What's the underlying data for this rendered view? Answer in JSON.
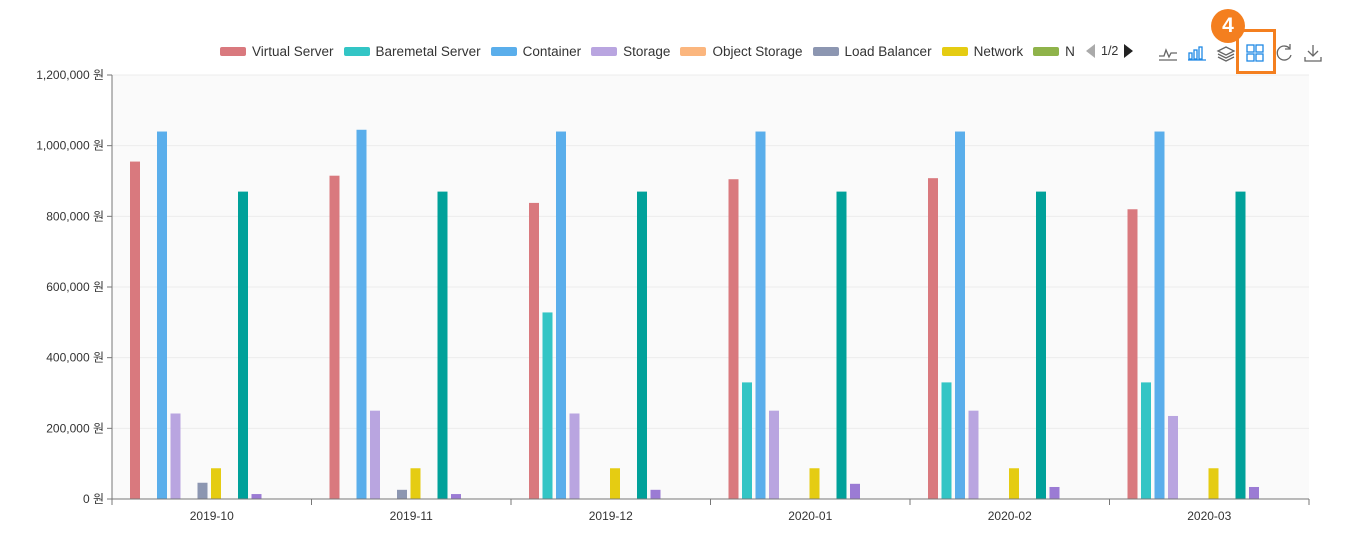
{
  "legend": {
    "items": [
      {
        "label": "Virtual Server",
        "color": "#d9797e"
      },
      {
        "label": "Baremetal Server",
        "color": "#33c5c5"
      },
      {
        "label": "Container",
        "color": "#5aaeeb"
      },
      {
        "label": "Storage",
        "color": "#b9a5e0"
      },
      {
        "label": "Object Storage",
        "color": "#fbb67e"
      },
      {
        "label": "Load Balancer",
        "color": "#8c96b1"
      },
      {
        "label": "Network",
        "color": "#e5cc12"
      },
      {
        "label": "N",
        "color": "#8fb34a"
      }
    ],
    "page_indicator": "1/2"
  },
  "toolbox": {
    "icons": [
      "line-chart-icon",
      "bar-chart-icon",
      "stack-icon",
      "tiled-icon",
      "refresh-icon",
      "download-icon"
    ]
  },
  "annotation": {
    "step_number": "4",
    "color": "#f47f1f"
  },
  "chart_data": {
    "type": "bar",
    "categories": [
      "2019-10",
      "2019-11",
      "2019-12",
      "2020-01",
      "2020-02",
      "2020-03"
    ],
    "ylim": [
      0,
      1200000
    ],
    "yticks": [
      "0 원",
      "200,000 원",
      "400,000 원",
      "600,000 원",
      "800,000 원",
      "1,000,000 원",
      "1,200,000 원"
    ],
    "grid": true,
    "series": [
      {
        "name": "Virtual Server",
        "color": "#d9797e",
        "values": [
          955000,
          915000,
          838000,
          905000,
          908000,
          820000
        ]
      },
      {
        "name": "Baremetal Server",
        "color": "#33c5c5",
        "values": [
          0,
          0,
          528000,
          330000,
          330000,
          330000
        ]
      },
      {
        "name": "Container",
        "color": "#5aaeeb",
        "values": [
          1040000,
          1045000,
          1040000,
          1040000,
          1040000,
          1040000
        ]
      },
      {
        "name": "Storage",
        "color": "#b9a5e0",
        "values": [
          242000,
          250000,
          242000,
          250000,
          250000,
          235000
        ]
      },
      {
        "name": "Object Storage",
        "color": "#fbb67e",
        "values": [
          0,
          0,
          0,
          0,
          0,
          0
        ]
      },
      {
        "name": "Load Balancer",
        "color": "#8c96b1",
        "values": [
          46000,
          26000,
          0,
          0,
          0,
          0
        ]
      },
      {
        "name": "Network",
        "color": "#e5cc12",
        "values": [
          87000,
          87000,
          87000,
          87000,
          87000,
          87000
        ]
      },
      {
        "name": "N",
        "color": "#8fb34a",
        "values": [
          0,
          0,
          0,
          0,
          0,
          0
        ]
      },
      {
        "name": "",
        "color": "#00a19a",
        "values": [
          870000,
          870000,
          870000,
          870000,
          870000,
          870000
        ]
      },
      {
        "name": "",
        "color": "#9b7bd4",
        "values": [
          14000,
          14000,
          26000,
          43000,
          34000,
          34000
        ]
      }
    ]
  }
}
